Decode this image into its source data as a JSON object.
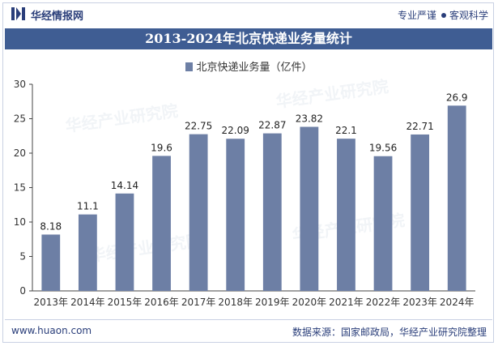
{
  "header": {
    "brand": "华经情报网",
    "tagline_left": "专业严谨",
    "tagline_right": "客观科学"
  },
  "colors": {
    "bar": "#6d7fa5",
    "title_bg": "#3f5d93",
    "brand": "#2a3e7a"
  },
  "watermark": "华经产业研究院",
  "chart_data": {
    "type": "bar",
    "title": "2013-2024年北京快递业务量统计",
    "categories": [
      "2013年",
      "2014年",
      "2015年",
      "2016年",
      "2017年",
      "2018年",
      "2019年",
      "2020年",
      "2021年",
      "2022年",
      "2023年",
      "2024年"
    ],
    "series": [
      {
        "name": "北京快递业务量（亿件）",
        "values": [
          8.18,
          11.1,
          14.14,
          19.6,
          22.75,
          22.09,
          22.87,
          23.82,
          22.1,
          19.56,
          22.71,
          26.9
        ]
      }
    ],
    "value_labels": [
      "8.18",
      "11.1",
      "14.14",
      "19.6",
      "22.75",
      "22.09",
      "22.87",
      "23.82",
      "22.1",
      "19.56",
      "22.71",
      "26.9"
    ],
    "ylim": [
      0,
      30
    ],
    "yticks": [
      0,
      5,
      10,
      15,
      20,
      25,
      30
    ],
    "xlabel": "",
    "ylabel": "",
    "legend_position": "top"
  },
  "footer": {
    "website": "www.huaon.com",
    "source": "数据来源：国家邮政局，华经产业研究院整理"
  }
}
